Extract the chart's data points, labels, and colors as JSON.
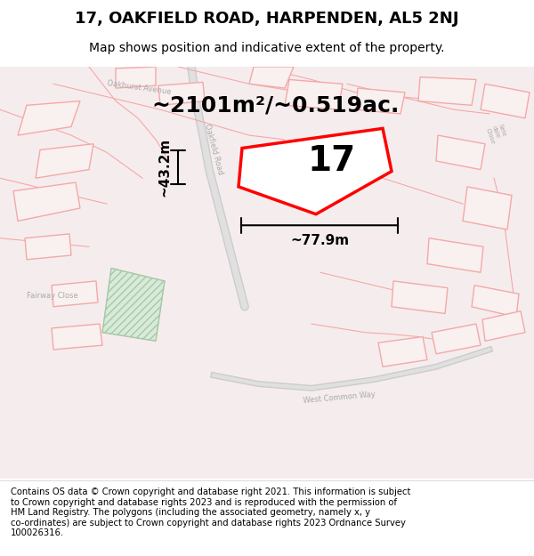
{
  "title": "17, OAKFIELD ROAD, HARPENDEN, AL5 2NJ",
  "subtitle": "Map shows position and indicative extent of the property.",
  "footer_text": "Contains OS data © Crown copyright and database right 2021. This information is subject\nto Crown copyright and database rights 2023 and is reproduced with the permission of\nHM Land Registry. The polygons (including the associated geometry, namely x, y\nco-ordinates) are subject to Crown copyright and database rights 2023 Ordnance Survey\n100026316.",
  "area_label": "~2101m²/~0.519ac.",
  "number_label": "17",
  "width_label": "~77.9m",
  "height_label": "~43.2m",
  "background_color": "#ffffff",
  "road_color": "#f5a8a8",
  "property_edge_color": "#ff0000",
  "property_fill": "#ffffff",
  "title_fontsize": 13,
  "subtitle_fontsize": 10,
  "footer_fontsize": 7.2,
  "area_fontsize": 18,
  "number_fontsize": 28,
  "dim_fontsize": 11
}
